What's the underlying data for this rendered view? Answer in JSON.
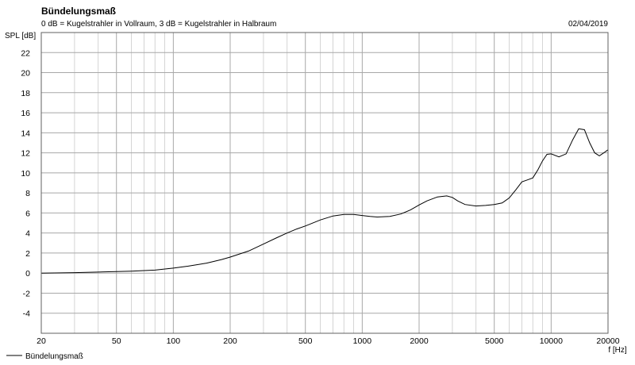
{
  "header": {
    "title": "Bündelungsmaß",
    "subtitle": "0 dB = Kugelstrahler in Vollraum, 3 dB = Kugelstrahler in Halbraum",
    "date": "02/04/2019"
  },
  "chart_data": {
    "type": "line",
    "title": "Bündelungsmaß",
    "subtitle": "0 dB = Kugelstrahler in Vollraum, 3 dB = Kugelstrahler in Halbraum",
    "xlabel": "f [Hz]",
    "ylabel": "SPL [dB]",
    "x_scale": "log",
    "xlim": [
      20,
      20000
    ],
    "ylim": [
      -6,
      24
    ],
    "grid": true,
    "x_ticks": [
      20,
      50,
      100,
      200,
      500,
      1000,
      2000,
      5000,
      10000,
      20000
    ],
    "x_tick_labels": [
      "20",
      "50",
      "100",
      "200",
      "500",
      "1000",
      "2000",
      "5000",
      "10000",
      "20000"
    ],
    "y_ticks": [
      -4,
      -2,
      0,
      2,
      4,
      6,
      8,
      10,
      12,
      14,
      16,
      18,
      20,
      22
    ],
    "y_tick_labels": [
      "-4",
      "-2",
      "0",
      "2",
      "4",
      "6",
      "8",
      "10",
      "12",
      "14",
      "16",
      "18",
      "20",
      "22"
    ],
    "legend": {
      "position": "bottom-left",
      "entries": [
        "Bündelungsmaß"
      ]
    },
    "series": [
      {
        "name": "Bündelungsmaß",
        "color": "#000000",
        "x": [
          20,
          30,
          40,
          50,
          60,
          70,
          80,
          100,
          120,
          150,
          180,
          200,
          250,
          300,
          350,
          400,
          450,
          500,
          600,
          700,
          800,
          900,
          1000,
          1100,
          1200,
          1400,
          1600,
          1800,
          2000,
          2200,
          2500,
          2800,
          3000,
          3200,
          3500,
          4000,
          4500,
          5000,
          5500,
          6000,
          6500,
          7000,
          7500,
          8000,
          8500,
          9000,
          9500,
          10000,
          11000,
          12000,
          13000,
          14000,
          15000,
          16000,
          17000,
          18000,
          19000,
          20000
        ],
        "y": [
          0.0,
          0.05,
          0.1,
          0.15,
          0.2,
          0.25,
          0.3,
          0.5,
          0.7,
          1.0,
          1.35,
          1.6,
          2.2,
          2.9,
          3.5,
          4.0,
          4.4,
          4.7,
          5.3,
          5.7,
          5.85,
          5.85,
          5.75,
          5.65,
          5.6,
          5.65,
          5.9,
          6.3,
          6.8,
          7.2,
          7.6,
          7.7,
          7.55,
          7.2,
          6.85,
          6.7,
          6.75,
          6.85,
          7.0,
          7.5,
          8.3,
          9.1,
          9.3,
          9.5,
          10.3,
          11.2,
          11.85,
          11.9,
          11.6,
          11.9,
          13.3,
          14.4,
          14.3,
          13.0,
          12.0,
          11.7,
          12.0,
          12.3
        ]
      }
    ]
  }
}
